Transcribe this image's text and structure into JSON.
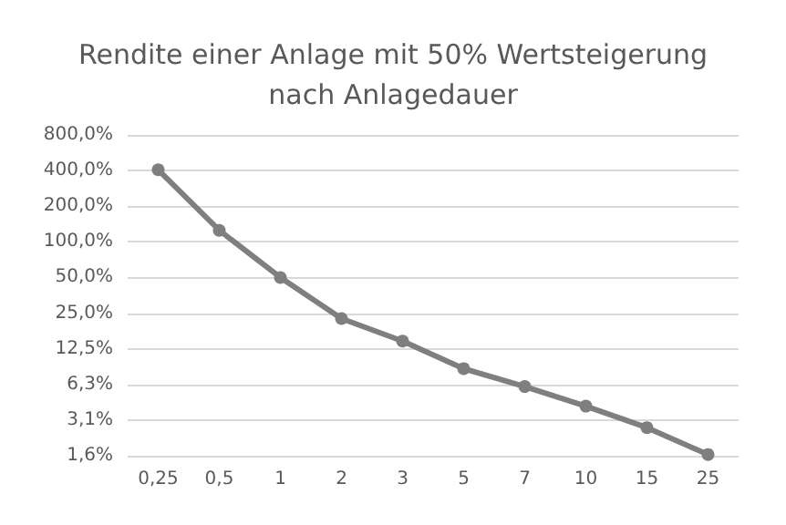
{
  "chart_data": {
    "type": "line",
    "title": "Rendite einer Anlage mit 50% Wertsteigerung\nnach Anlagedauer",
    "categories": [
      "0,25",
      "0,5",
      "1",
      "2",
      "3",
      "5",
      "7",
      "10",
      "15",
      "25"
    ],
    "series": [
      {
        "color": "#7f7f7f",
        "values": [
          406,
          125,
          50,
          22.5,
          14.5,
          8.5,
          6.0,
          4.1,
          2.7,
          1.6
        ]
      }
    ],
    "log": true,
    "ylim": [
      1.5625,
      800
    ],
    "yticks": [
      {
        "value": 1.5625,
        "label": "1,6%"
      },
      {
        "value": 3.125,
        "label": "3,1%"
      },
      {
        "value": 6.25,
        "label": "6,3%"
      },
      {
        "value": 12.5,
        "label": "12,5%"
      },
      {
        "value": 25,
        "label": "25,0%"
      },
      {
        "value": 50,
        "label": "50,0%"
      },
      {
        "value": 100,
        "label": "100,0%"
      },
      {
        "value": 200,
        "label": "200,0%"
      },
      {
        "value": 400,
        "label": "400,0%"
      },
      {
        "value": 800,
        "label": "800,0%"
      }
    ],
    "grid": "y",
    "marker": "circle",
    "line_style": "solid"
  }
}
